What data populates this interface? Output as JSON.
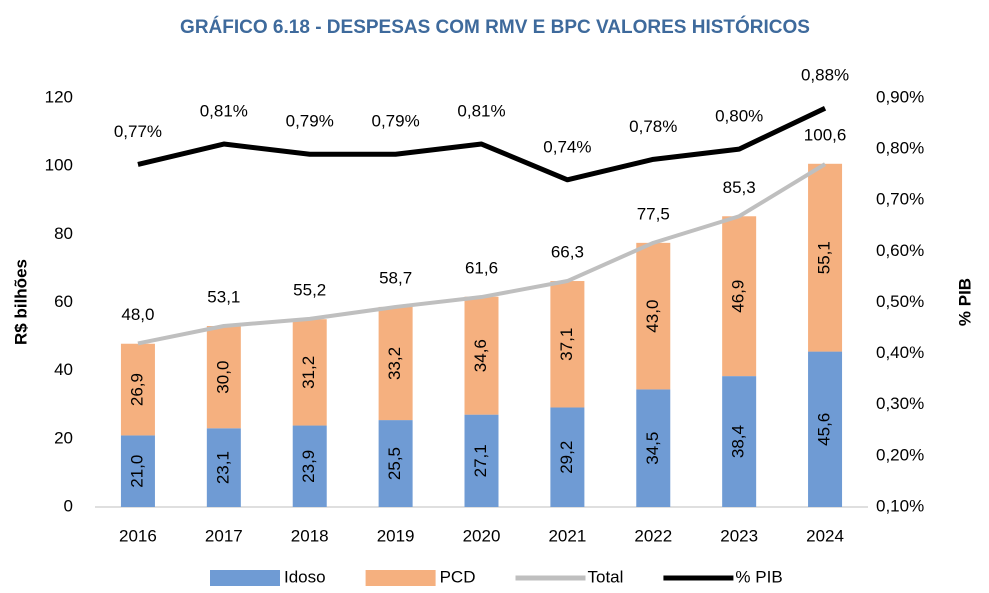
{
  "chart_data": {
    "type": "bar",
    "title": "GRÁFICO 6.18 - DESPESAS COM RMV E BPC VALORES HISTÓRICOS",
    "y_label": "R$ bilhões",
    "y2_label": "% PIB",
    "categories": [
      "2016",
      "2017",
      "2018",
      "2019",
      "2020",
      "2021",
      "2022",
      "2023",
      "2024"
    ],
    "series": [
      {
        "name": "Idoso",
        "color": "#6f9bd4",
        "values": [
          21.0,
          23.1,
          23.9,
          25.5,
          27.1,
          29.2,
          34.5,
          38.4,
          45.6
        ],
        "value_labels": [
          "21,0",
          "23,1",
          "23,9",
          "25,5",
          "27,1",
          "29,2",
          "34,5",
          "38,4",
          "45,6"
        ]
      },
      {
        "name": "PCD",
        "color": "#f5b07f",
        "values": [
          26.9,
          30.0,
          31.2,
          33.2,
          34.6,
          37.1,
          43.0,
          46.9,
          55.1
        ],
        "value_labels": [
          "26,9",
          "30,0",
          "31,2",
          "33,2",
          "34,6",
          "37,1",
          "43,0",
          "46,9",
          "55,1"
        ]
      },
      {
        "name": "Total",
        "type": "line",
        "color": "#bfbfbf",
        "values": [
          48.0,
          53.1,
          55.2,
          58.7,
          61.6,
          66.3,
          77.5,
          85.3,
          100.6
        ],
        "value_labels": [
          "48,0",
          "53,1",
          "55,2",
          "58,7",
          "61,6",
          "66,3",
          "77,5",
          "85,3",
          "100,6"
        ]
      },
      {
        "name": "% PIB",
        "type": "line",
        "axis": "y2",
        "color": "#000000",
        "values": [
          0.77,
          0.81,
          0.79,
          0.79,
          0.81,
          0.74,
          0.78,
          0.8,
          0.88
        ],
        "value_labels": [
          "0,77%",
          "0,81%",
          "0,79%",
          "0,79%",
          "0,81%",
          "0,74%",
          "0,78%",
          "0,80%",
          "0,88%"
        ]
      }
    ],
    "ylim": [
      0,
      120
    ],
    "yticks": [
      0,
      20,
      40,
      60,
      80,
      100,
      120
    ],
    "y2lim": [
      0.1,
      0.9
    ],
    "y2ticks": [
      {
        "value": 0.1,
        "label": "0,10%"
      },
      {
        "value": 0.2,
        "label": "0,20%"
      },
      {
        "value": 0.3,
        "label": "0,30%"
      },
      {
        "value": 0.4,
        "label": "0,40%"
      },
      {
        "value": 0.5,
        "label": "0,50%"
      },
      {
        "value": 0.6,
        "label": "0,60%"
      },
      {
        "value": 0.7,
        "label": "0,70%"
      },
      {
        "value": 0.8,
        "label": "0,80%"
      },
      {
        "value": 0.9,
        "label": "0,90%"
      }
    ],
    "legend": "bottom"
  }
}
